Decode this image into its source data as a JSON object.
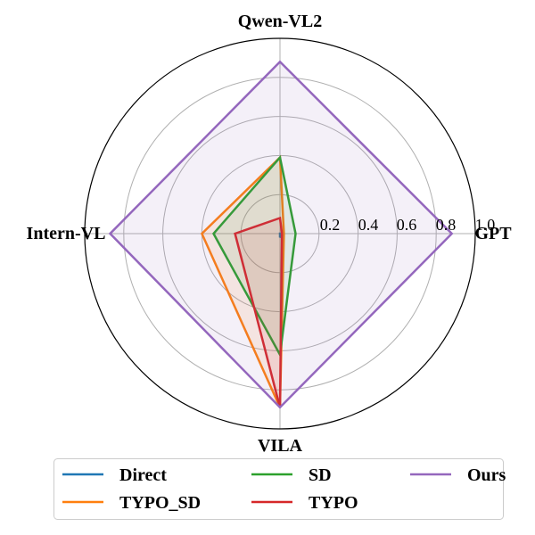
{
  "chart_data": {
    "type": "radar",
    "axes": [
      "GPT",
      "Qwen-VL2",
      "Intern-VL",
      "VILA"
    ],
    "rlim": [
      0,
      1.0
    ],
    "rticks": [
      "0.2",
      "0.4",
      "0.6",
      "0.8",
      "1.0"
    ],
    "rtick_values": [
      0.2,
      0.4,
      0.6,
      0.8,
      1.0
    ],
    "grid": true,
    "legend_position": "bottom",
    "series": [
      {
        "name": "Direct",
        "color": "#1f77b4",
        "values": [
          0.01,
          0.0,
          0.0,
          0.02
        ]
      },
      {
        "name": "TYPO_SD",
        "color": "#ff7f0e",
        "values": [
          0.02,
          0.39,
          0.4,
          0.89
        ]
      },
      {
        "name": "SD",
        "color": "#2ca02c",
        "values": [
          0.08,
          0.39,
          0.34,
          0.62
        ]
      },
      {
        "name": "TYPO",
        "color": "#d62728",
        "values": [
          0.01,
          0.08,
          0.23,
          0.89
        ]
      },
      {
        "name": "Ours",
        "color": "#9467bd",
        "values": [
          0.88,
          0.88,
          0.87,
          0.89
        ]
      }
    ]
  }
}
